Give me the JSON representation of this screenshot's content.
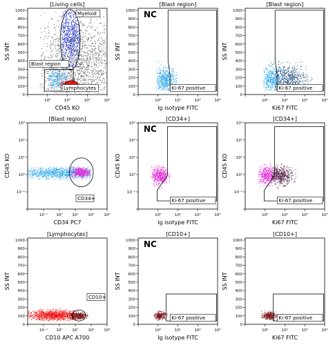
{
  "colors": {
    "living": "#3a3a3a",
    "myeloid": "#0b22d8",
    "blast": "#24a4ea",
    "lymph": "#e81010",
    "dark_blue": "#0d3a6e",
    "magenta": "#e22ed6",
    "dark_magenta": "#4a1640",
    "red": "#f01818",
    "dark_red": "#7a1418"
  },
  "chart_data": [
    {
      "id": "p1",
      "type": "scatter",
      "title": "[Living cells]",
      "badge": "",
      "xlabel": "CD45 KO",
      "ylabel": "SS INT",
      "xscale": "log",
      "xlim": [
        0.1,
        1000
      ],
      "ylim": [
        0,
        1024
      ],
      "yticks": [
        "0",
        "100",
        "200",
        "300",
        "400",
        "500",
        "600",
        "700",
        "800",
        "900",
        "1000"
      ],
      "gate_labels": [
        "Myeloid",
        "Blast region",
        "Lymphocytes"
      ],
      "clouds": [
        {
          "color": "living",
          "n": 2200,
          "x": [
            0.4,
            900
          ],
          "y": [
            20,
            1000
          ],
          "cx": 30,
          "cy": 350,
          "sx": 1.2,
          "sy": 300
        },
        {
          "color": "blast",
          "n": 500,
          "x": [
            1,
            10
          ],
          "y": [
            60,
            300
          ],
          "cx": 3,
          "cy": 180,
          "sx": 0.45,
          "sy": 70
        },
        {
          "color": "lymph",
          "n": 220,
          "x": [
            4,
            50
          ],
          "y": [
            60,
            180
          ],
          "cx": 12,
          "cy": 115,
          "sx": 0.3,
          "sy": 25
        },
        {
          "color": "myeloid",
          "n": 900,
          "x": [
            5,
            40
          ],
          "y": [
            320,
            1000
          ],
          "cx": 15,
          "cy": 700,
          "sx": 0.35,
          "sy": 200
        }
      ]
    },
    {
      "id": "p2",
      "type": "scatter",
      "title": "[Blast region]",
      "badge": "NC",
      "xlabel": "Ig isotype FITC",
      "ylabel": "SS INT",
      "xscale": "log",
      "xlim": [
        0.1,
        1000
      ],
      "ylim": [
        0,
        1024
      ],
      "yticks": [
        "0",
        "100",
        "200",
        "300",
        "400",
        "500",
        "600",
        "700",
        "800",
        "900",
        "1000"
      ],
      "gate_labels": [
        "Ki-67 positive"
      ],
      "clouds": [
        {
          "color": "blast",
          "n": 650,
          "x": [
            0.8,
            10
          ],
          "y": [
            50,
            400
          ],
          "cx": 2.2,
          "cy": 170,
          "sx": 0.28,
          "sy": 80
        }
      ]
    },
    {
      "id": "p3",
      "type": "scatter",
      "title": "[Blast region]",
      "badge": "",
      "xlabel": "Ki67 FITC",
      "ylabel": "SS INT",
      "xscale": "log",
      "xlim": [
        0.1,
        1000
      ],
      "ylim": [
        0,
        1024
      ],
      "yticks": [
        "0",
        "100",
        "200",
        "300",
        "400",
        "500",
        "600",
        "700",
        "800",
        "900",
        "1000"
      ],
      "gate_labels": [
        "Ki-67 positive"
      ],
      "clouds": [
        {
          "color": "blast",
          "n": 550,
          "x": [
            0.8,
            10
          ],
          "y": [
            50,
            400
          ],
          "cx": 2.2,
          "cy": 170,
          "sx": 0.28,
          "sy": 80
        },
        {
          "color": "dark_blue",
          "n": 650,
          "x": [
            3,
            400
          ],
          "y": [
            50,
            400
          ],
          "cx": 15,
          "cy": 190,
          "sx": 0.45,
          "sy": 85
        }
      ]
    },
    {
      "id": "p4",
      "type": "scatter",
      "title": "[Blast region]",
      "badge": "",
      "xlabel": "CD34 PC7",
      "ylabel": "CD45 KO",
      "xscale": "log",
      "xlim": [
        0.01,
        1000
      ],
      "yscale": "log",
      "ylim": [
        0.01,
        1000
      ],
      "gate_labels": [
        "CD34+"
      ],
      "clouds": [
        {
          "color": "blast",
          "n": 1300,
          "x": [
            0.01,
            90
          ],
          "y": [
            0.5,
            3
          ],
          "cx": 1,
          "cy": 1.3,
          "sx": 1.5,
          "sy": 0.18
        },
        {
          "color": "magenta",
          "n": 500,
          "x": [
            3,
            90
          ],
          "y": [
            0.6,
            3
          ],
          "cx": 22,
          "cy": 1.4,
          "sx": 0.3,
          "sy": 0.14
        }
      ]
    },
    {
      "id": "p5",
      "type": "scatter",
      "title": "[CD34+]",
      "badge": "NC",
      "xlabel": "Ig isotype FITC",
      "ylabel": "CD45 KO",
      "xscale": "log",
      "xlim": [
        0.1,
        1000
      ],
      "yscale": "log",
      "ylim": [
        0.01,
        1000
      ],
      "gate_labels": [
        "Ki-67 positive"
      ],
      "clouds": [
        {
          "color": "magenta",
          "n": 550,
          "x": [
            0.4,
            5
          ],
          "y": [
            0.15,
            5
          ],
          "cx": 1.2,
          "cy": 0.9,
          "sx": 0.2,
          "sy": 0.25
        }
      ]
    },
    {
      "id": "p6",
      "type": "scatter",
      "title": "[CD34+]",
      "badge": "",
      "xlabel": "Ki67 FITC",
      "ylabel": "CD45 KO",
      "xscale": "log",
      "xlim": [
        0.1,
        1000
      ],
      "yscale": "log",
      "ylim": [
        0.01,
        1000
      ],
      "gate_labels": [
        "Ki-67 positive"
      ],
      "clouds": [
        {
          "color": "magenta",
          "n": 500,
          "x": [
            0.4,
            5
          ],
          "y": [
            0.15,
            5
          ],
          "cx": 1.2,
          "cy": 0.9,
          "sx": 0.22,
          "sy": 0.25
        },
        {
          "color": "dark_magenta",
          "n": 550,
          "x": [
            2,
            60
          ],
          "y": [
            0.15,
            5
          ],
          "cx": 6,
          "cy": 0.9,
          "sx": 0.3,
          "sy": 0.25
        }
      ]
    },
    {
      "id": "p7",
      "type": "scatter",
      "title": "[Lymphocytes]",
      "badge": "",
      "xlabel": "CD10 APC A700",
      "ylabel": "SS INT",
      "xscale": "log",
      "xlim": [
        0.01,
        1000
      ],
      "ylim": [
        0,
        1024
      ],
      "yticks": [
        "0",
        "100",
        "200",
        "300",
        "400",
        "500",
        "600",
        "700",
        "800",
        "900",
        "1000"
      ],
      "gate_labels": [
        "CD10+"
      ],
      "clouds": [
        {
          "color": "red",
          "n": 1400,
          "x": [
            0.01,
            8
          ],
          "y": [
            40,
            190
          ],
          "cx": 0.5,
          "cy": 110,
          "sx": 0.9,
          "sy": 30
        },
        {
          "color": "dark_red",
          "n": 400,
          "x": [
            3,
            60
          ],
          "y": [
            50,
            170
          ],
          "cx": 15,
          "cy": 105,
          "sx": 0.28,
          "sy": 22
        }
      ]
    },
    {
      "id": "p8",
      "type": "scatter",
      "title": "[CD10+]",
      "badge": "NC",
      "xlabel": "Ig isotype FITC",
      "ylabel": "SS INT",
      "xscale": "log",
      "xlim": [
        0.1,
        1000
      ],
      "ylim": [
        0,
        1024
      ],
      "yticks": [
        "0",
        "100",
        "200",
        "300",
        "400",
        "500",
        "600",
        "700",
        "800",
        "900",
        "1000"
      ],
      "gate_labels": [
        "Ki-67 positive"
      ],
      "clouds": [
        {
          "color": "dark_red",
          "n": 300,
          "x": [
            0.6,
            3
          ],
          "y": [
            50,
            170
          ],
          "cx": 1.2,
          "cy": 105,
          "sx": 0.14,
          "sy": 22
        }
      ]
    },
    {
      "id": "p9",
      "type": "scatter",
      "title": "[CD10+]",
      "badge": "",
      "xlabel": "Ki67 FITC",
      "ylabel": "SS INT",
      "xscale": "log",
      "xlim": [
        0.1,
        1000
      ],
      "ylim": [
        0,
        1024
      ],
      "yticks": [
        "0",
        "100",
        "200",
        "300",
        "400",
        "500",
        "600",
        "700",
        "800",
        "900",
        "1000"
      ],
      "gate_labels": [
        "Ki-67 positive"
      ],
      "clouds": [
        {
          "color": "dark_red",
          "n": 340,
          "x": [
            0.6,
            6
          ],
          "y": [
            50,
            170
          ],
          "cx": 1.5,
          "cy": 105,
          "sx": 0.18,
          "sy": 22
        }
      ]
    }
  ]
}
